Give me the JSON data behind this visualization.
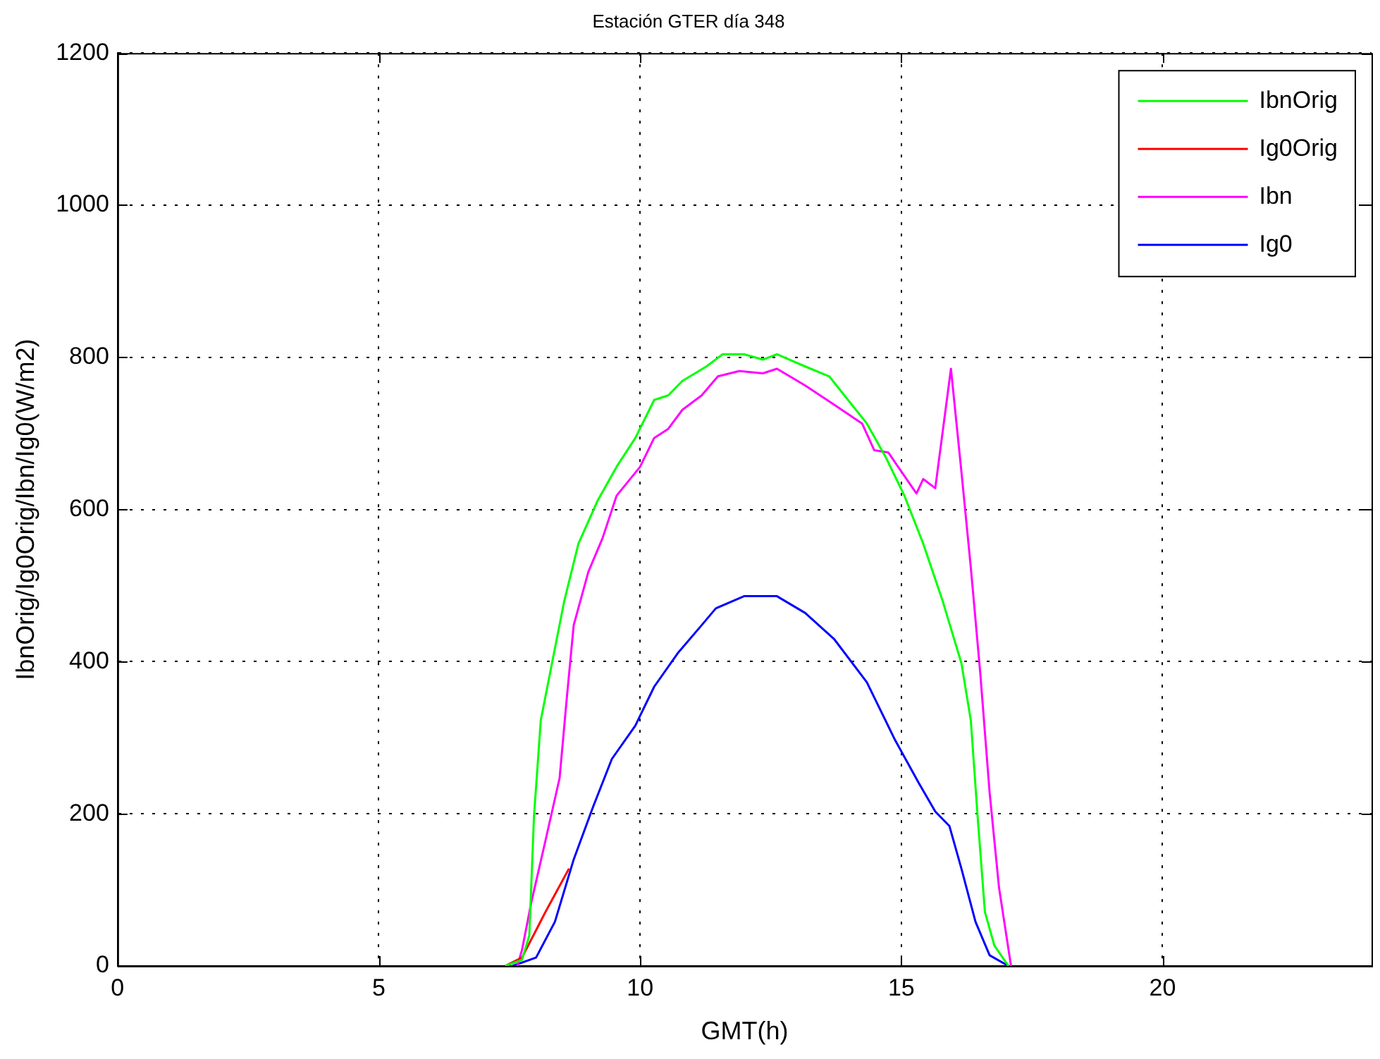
{
  "chart_data": {
    "type": "line",
    "title": "Estación GTER día 348",
    "xlabel": "GMT(h)",
    "ylabel": "IbnOrig/Ig0Orig/Ibn/Ig0(W/m2)",
    "xlim": [
      0,
      24
    ],
    "xticks": [
      0,
      5,
      10,
      15,
      20
    ],
    "ylim": [
      0,
      1200
    ],
    "yticks": [
      0,
      200,
      400,
      600,
      800,
      1000,
      1200
    ],
    "grid": true,
    "legend": "top right",
    "marker": "none",
    "line_style": "solid",
    "series": [
      {
        "name": "IbnOrig",
        "color": "#00ff00",
        "x": [
          7.42,
          7.74,
          7.88,
          7.97,
          8.1,
          8.28,
          8.55,
          8.82,
          9.19,
          9.55,
          9.91,
          10.27,
          10.54,
          10.81,
          11.27,
          11.58,
          11.99,
          12.35,
          12.62,
          13.16,
          13.62,
          13.98,
          14.34,
          14.7,
          15.06,
          15.42,
          15.79,
          16.15,
          16.33,
          16.46,
          16.6,
          16.78,
          17.05
        ],
        "values": [
          0,
          8,
          40,
          197,
          323,
          386,
          480,
          555,
          612,
          656,
          694,
          744,
          750,
          769,
          788,
          804,
          804,
          797,
          804,
          788,
          775,
          744,
          713,
          669,
          618,
          555,
          480,
          398,
          323,
          197,
          71,
          27,
          0
        ]
      },
      {
        "name": "Ig0Orig",
        "color": "#ff0000",
        "x": [
          7.42,
          7.74,
          8.19,
          8.64
        ],
        "values": [
          0,
          11,
          71,
          128
        ]
      },
      {
        "name": "Ibn",
        "color": "#ff00ff",
        "x": [
          7.65,
          7.74,
          7.92,
          8.19,
          8.46,
          8.6,
          8.73,
          9.01,
          9.28,
          9.55,
          10.0,
          10.27,
          10.54,
          10.81,
          11.18,
          11.49,
          11.9,
          12.35,
          12.62,
          13.16,
          13.71,
          14.25,
          14.48,
          14.75,
          15.29,
          15.42,
          15.65,
          15.95,
          16.15,
          16.33,
          16.51,
          16.69,
          16.87,
          17.1
        ],
        "values": [
          0,
          21,
          84,
          165,
          247,
          354,
          448,
          518,
          562,
          618,
          656,
          694,
          706,
          731,
          750,
          775,
          782,
          779,
          785,
          763,
          738,
          713,
          678,
          675,
          621,
          640,
          628,
          785,
          650,
          524,
          386,
          228,
          103,
          0
        ]
      },
      {
        "name": "Ig0",
        "color": "#0000ff",
        "x": [
          7.56,
          8.01,
          8.37,
          8.73,
          9.1,
          9.46,
          9.91,
          10.27,
          10.72,
          11.18,
          11.45,
          11.99,
          12.62,
          13.16,
          13.71,
          14.34,
          14.88,
          15.33,
          15.65,
          15.92,
          16.15,
          16.42,
          16.69,
          17.05
        ],
        "values": [
          0,
          11,
          58,
          140,
          209,
          272,
          316,
          367,
          411,
          448,
          470,
          486,
          486,
          464,
          430,
          373,
          297,
          241,
          203,
          184,
          128,
          58,
          14,
          0
        ]
      }
    ]
  }
}
